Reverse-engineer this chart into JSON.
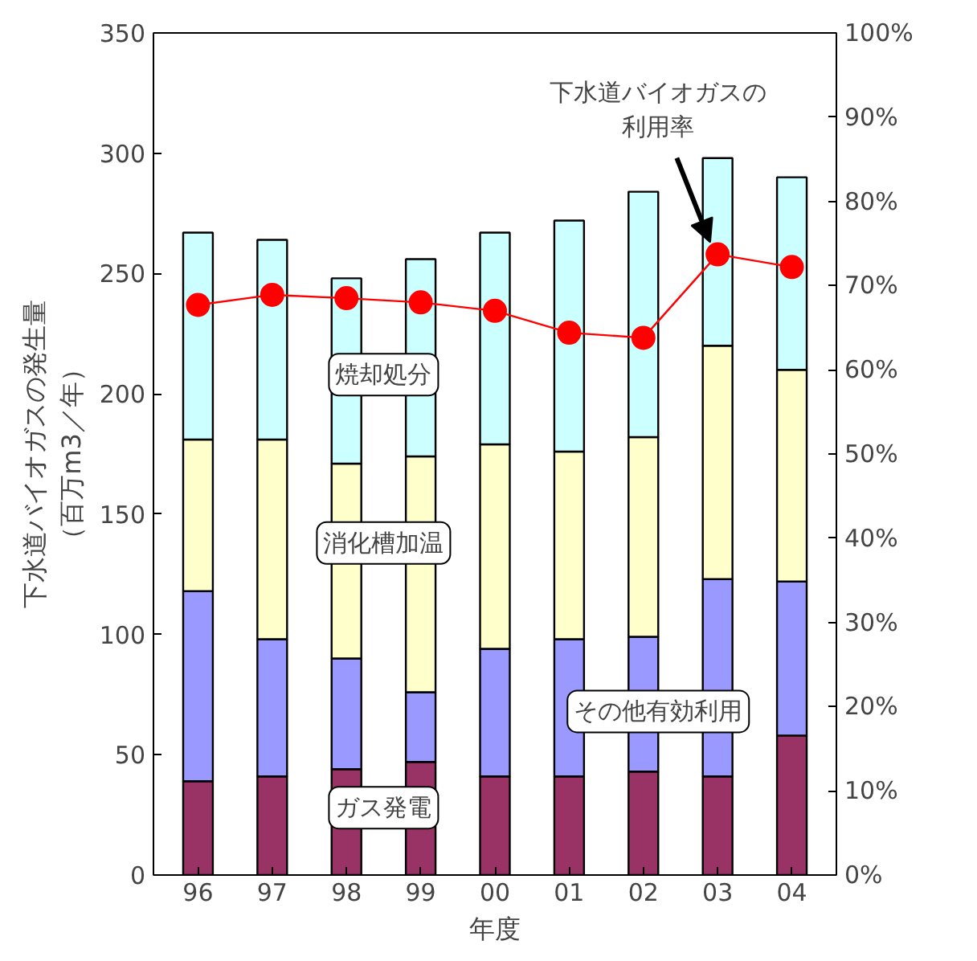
{
  "chart_data": {
    "type": "bar",
    "stacked": true,
    "xlabel": "年度",
    "ylabel": "下水道バイオガスの発生量（百万m3／年）",
    "categories": [
      "96",
      "97",
      "98",
      "99",
      "00",
      "01",
      "02",
      "03",
      "04"
    ],
    "series": [
      {
        "name": "ガス発電",
        "color": "#993366",
        "values": [
          39,
          41,
          44,
          47,
          41,
          41,
          43,
          41,
          58
        ]
      },
      {
        "name": "その他有効利用",
        "color": "#9999ff",
        "values": [
          79,
          57,
          46,
          29,
          53,
          57,
          56,
          82,
          64
        ]
      },
      {
        "name": "消化槽加温",
        "color": "#ffffcc",
        "values": [
          63,
          83,
          81,
          98,
          85,
          78,
          83,
          97,
          88
        ]
      },
      {
        "name": "焼却処分",
        "color": "#ccffff",
        "values": [
          86,
          83,
          77,
          82,
          88,
          96,
          102,
          78,
          80
        ]
      },
      {
        "name": "下水道バイオガスの利用率",
        "type": "line",
        "axis": "y2",
        "color": "#ff0000",
        "marker": "circle",
        "values": [
          67.7,
          68.9,
          68.5,
          68,
          67,
          64.4,
          63.8,
          73.7,
          72.2
        ]
      }
    ],
    "ylim": [
      0,
      350
    ],
    "yticks": [
      0,
      50,
      100,
      150,
      200,
      250,
      300,
      350
    ],
    "y2lim": [
      0,
      100
    ],
    "y2ticks": [
      {
        "value": 0,
        "label": "0%"
      },
      {
        "value": 10,
        "label": "10%"
      },
      {
        "value": 20,
        "label": "20%"
      },
      {
        "value": 30,
        "label": "30%"
      },
      {
        "value": 40,
        "label": "40%"
      },
      {
        "value": 50,
        "label": "50%"
      },
      {
        "value": 60,
        "label": "60%"
      },
      {
        "value": 70,
        "label": "70%"
      },
      {
        "value": 80,
        "label": "80%"
      },
      {
        "value": 90,
        "label": "90%"
      },
      {
        "value": 100,
        "label": "100%"
      }
    ],
    "grid": false
  }
}
